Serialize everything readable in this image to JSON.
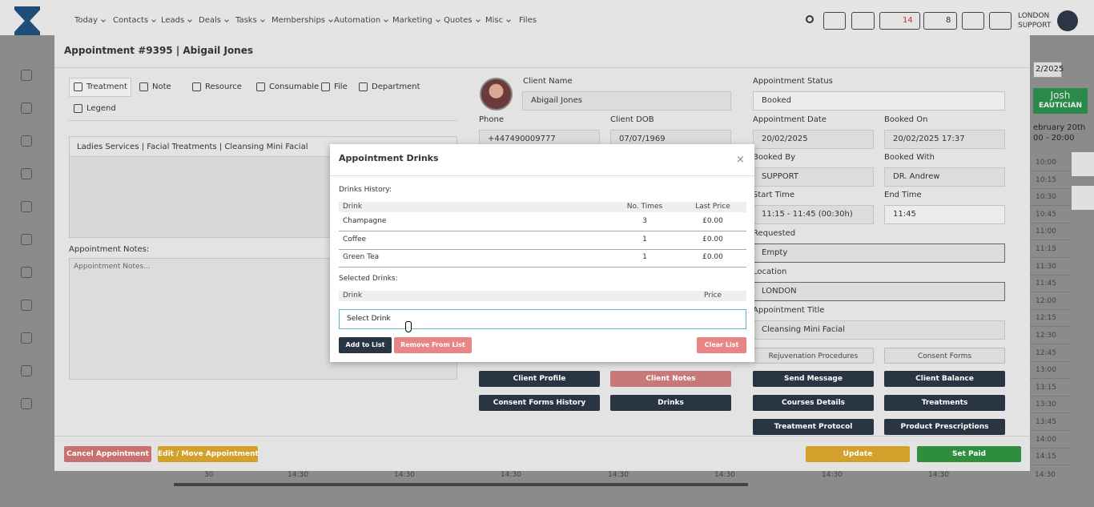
{
  "nav": {
    "items": [
      "Today",
      "Contacts",
      "Leads",
      "Deals",
      "Tasks",
      "Memberships",
      "Automation",
      "Marketing",
      "Quotes",
      "Misc",
      "Files"
    ],
    "badges": [
      14,
      8
    ],
    "user": [
      "LONDON",
      "SUPPORT"
    ]
  },
  "background": {
    "date": "2/2025",
    "staff": "Josh",
    "role": "EAUTICIAN",
    "day": "ebruary 20th",
    "hours": "00 - 20:00",
    "times": [
      "10:00",
      "10:15",
      "10:30",
      "10:45",
      "11:00",
      "11:15",
      "11:30",
      "11:45",
      "12:00",
      "12:15",
      "12:30",
      "12:45",
      "13:00",
      "13:15",
      "13:30",
      "13:45",
      "14:00",
      "14:15"
    ],
    "bottom": [
      "30",
      "14:30",
      "14:30",
      "14:30",
      "14:30",
      "14:30",
      "14:30",
      "14:30",
      "14:30"
    ]
  },
  "appointment": {
    "title": "Appointment #9395 | Abigail Jones",
    "tabs": [
      "Treatment",
      "Note",
      "Resource",
      "Consumable",
      "File",
      "Department",
      "Legend"
    ],
    "treatment": "Ladies Services | Facial Treatments | Cleansing Mini Facial",
    "notes_label": "Appointment Notes:",
    "notes_placeholder": "Appointment Notes...",
    "fields": [
      {
        "label": "Client Name",
        "value": "Abigail Jones"
      },
      {
        "label": "Phone",
        "value": "+447490009777"
      },
      {
        "label": "Client DOB",
        "value": "07/07/1969"
      },
      {
        "label": "Appointment Status",
        "value": "Booked"
      },
      {
        "label": "Appointment Date",
        "value": "20/02/2025"
      },
      {
        "label": "Booked On",
        "value": "20/02/2025 17:37"
      },
      {
        "label": "Booked By",
        "value": "SUPPORT"
      },
      {
        "label": "Booked With",
        "value": "DR. Andrew"
      },
      {
        "label": "Start Time",
        "value": "11:15 - 11:45 (00:30h)"
      },
      {
        "label": "End Time",
        "value": "11:45"
      },
      {
        "label": "Requested",
        "value": "Empty"
      },
      {
        "label": "Location",
        "value": "LONDON"
      },
      {
        "label": "Appointment Title",
        "value": "Cleansing Mini Facial"
      }
    ],
    "buttons": [
      "Rejuvenation Procedures",
      "Consent Forms",
      "Client Profile",
      "Client Notes",
      "Send Message",
      "Client Balance",
      "Consent Forms History",
      "Drinks",
      "Courses Details",
      "Treatments",
      "Treatment Protocol",
      "Product Prescriptions"
    ],
    "footer": [
      "Cancel Appointment",
      "Edit / Move Appointment",
      "Update",
      "Set Paid"
    ]
  },
  "drinks": {
    "title": "Appointment Drinks",
    "history_label": "Drinks History:",
    "history_header": [
      "Drink",
      "No. Times",
      "Last Price"
    ],
    "history": [
      [
        "Champagne",
        3,
        "£0.00"
      ],
      [
        "Coffee",
        1,
        "£0.00"
      ],
      [
        "Green Tea",
        1,
        "£0.00"
      ]
    ],
    "selected_label": "Selected Drinks:",
    "selected_header": [
      "Drink",
      "Price"
    ],
    "select": "Select Drink",
    "actions": [
      "Add to List",
      "Remove From List",
      "Clear List"
    ]
  }
}
